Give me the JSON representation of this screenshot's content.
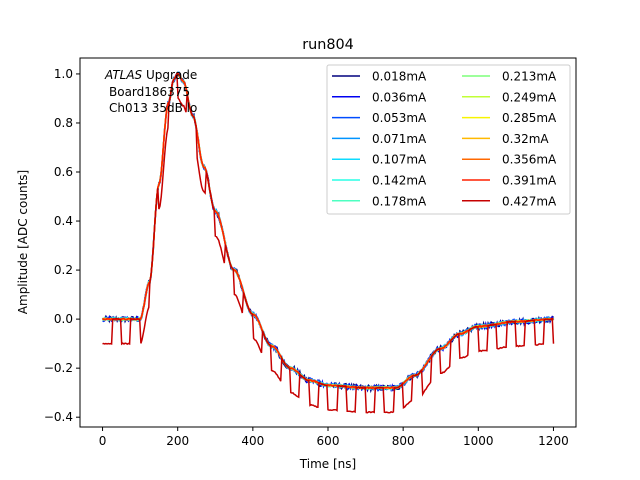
{
  "chart_data": {
    "type": "line",
    "title": "run804",
    "xlabel": "Time [ns]",
    "ylabel": "Amplitude [ADC counts]",
    "xlim": [
      -60,
      1260
    ],
    "ylim": [
      -0.44,
      1.065
    ],
    "xticks": [
      0,
      200,
      400,
      600,
      800,
      1000,
      1200
    ],
    "yticks": [
      -0.4,
      -0.2,
      0.0,
      0.2,
      0.4,
      0.6,
      0.8,
      1.0
    ],
    "grid": false,
    "legend_position": "upper right",
    "legend_columns": 2,
    "annotation": {
      "line1_italic": "ATLAS",
      "line1_rest": " Upgrade",
      "line2": "Board186375",
      "line3": "Ch013 35dB lo"
    },
    "pulse_shape": {
      "x": [
        0,
        100,
        125,
        150,
        175,
        190,
        200,
        215,
        240,
        270,
        300,
        350,
        400,
        450,
        500,
        550,
        600,
        700,
        780,
        830,
        900,
        950,
        1000,
        1100,
        1200
      ],
      "y": [
        0.0,
        0.0,
        0.15,
        0.55,
        0.88,
        0.98,
        1.0,
        0.97,
        0.83,
        0.62,
        0.44,
        0.2,
        0.02,
        -0.11,
        -0.2,
        -0.25,
        -0.27,
        -0.28,
        -0.28,
        -0.23,
        -0.12,
        -0.06,
        -0.03,
        -0.01,
        0.0
      ]
    },
    "series": [
      {
        "name": "0.018mA",
        "color": "#00007f",
        "noise": 0.012,
        "drop": 0.0
      },
      {
        "name": "0.036mA",
        "color": "#0000f1",
        "noise": 0.01,
        "drop": 0.0
      },
      {
        "name": "0.053mA",
        "color": "#004cff",
        "noise": 0.008,
        "drop": 0.0
      },
      {
        "name": "0.071mA",
        "color": "#0094ff",
        "noise": 0.007,
        "drop": 0.0
      },
      {
        "name": "0.107mA",
        "color": "#0ddbff",
        "noise": 0.006,
        "drop": 0.0
      },
      {
        "name": "0.142mA",
        "color": "#2affe6",
        "noise": 0.005,
        "drop": 0.0
      },
      {
        "name": "0.178mA",
        "color": "#4effc1",
        "noise": 0.004,
        "drop": 0.0
      },
      {
        "name": "0.213mA",
        "color": "#7dff7a",
        "noise": 0.004,
        "drop": 0.0
      },
      {
        "name": "0.249mA",
        "color": "#c1ff36",
        "noise": 0.003,
        "drop": 0.0
      },
      {
        "name": "0.285mA",
        "color": "#f7f400",
        "noise": 0.003,
        "drop": 0.0
      },
      {
        "name": "0.32mA",
        "color": "#ffb900",
        "noise": 0.003,
        "drop": 0.0
      },
      {
        "name": "0.356mA",
        "color": "#ff6800",
        "noise": 0.003,
        "drop": 0.0
      },
      {
        "name": "0.391mA",
        "color": "#ff2000",
        "noise": 0.003,
        "drop": 0.0
      },
      {
        "name": "0.427mA",
        "color": "#c60000",
        "noise": 0.002,
        "drop": 0.1
      }
    ]
  }
}
